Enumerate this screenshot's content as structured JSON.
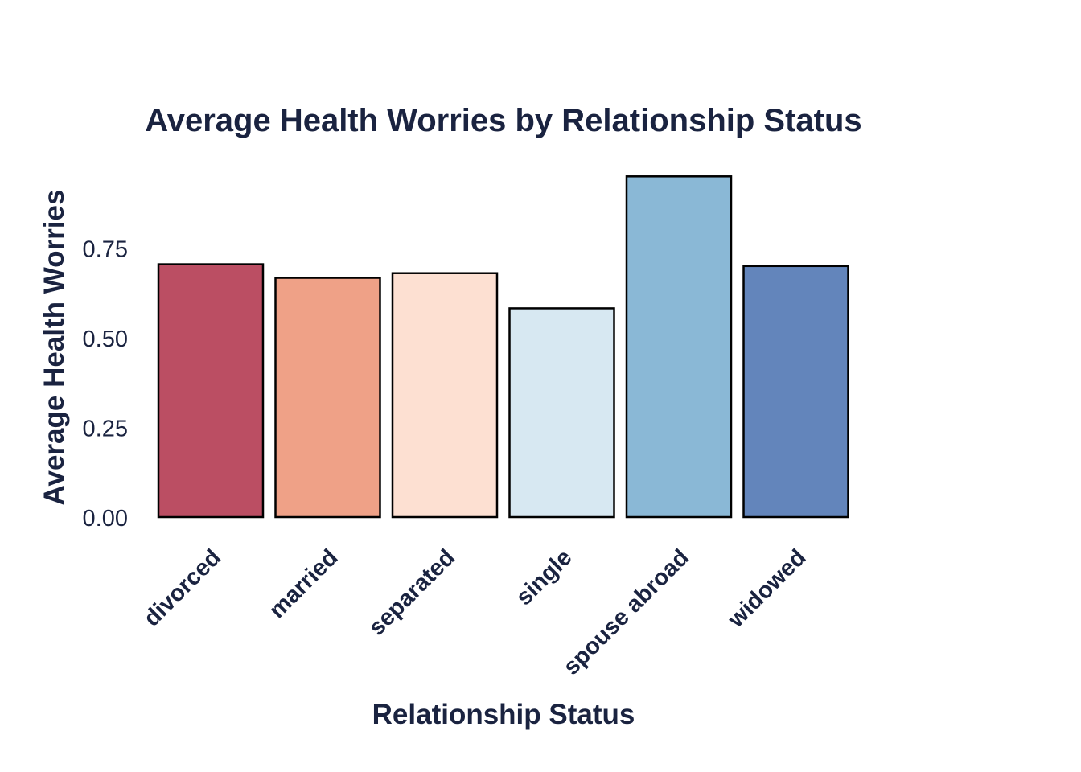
{
  "chart_data": {
    "type": "bar",
    "title": "Average Health Worries by Relationship Status",
    "xlabel": "Relationship Status",
    "ylabel": "Average Health Worries",
    "categories": [
      "divorced",
      "married",
      "separated",
      "single",
      "spouse abroad",
      "widowed"
    ],
    "values": [
      0.705,
      0.667,
      0.68,
      0.582,
      0.95,
      0.7
    ],
    "ylim": [
      0,
      0.95
    ],
    "yticks": [
      "0.00",
      "0.25",
      "0.50",
      "0.75"
    ],
    "ytick_values": [
      0,
      0.25,
      0.5,
      0.75
    ],
    "grid": false,
    "legend": "none",
    "bar_colors": [
      "#bb4e63",
      "#efa187",
      "#fde0d2",
      "#d7e8f2",
      "#8ab8d6",
      "#6385bb"
    ],
    "bar_edge_color": "#000000",
    "text_color": "#1a2340"
  }
}
